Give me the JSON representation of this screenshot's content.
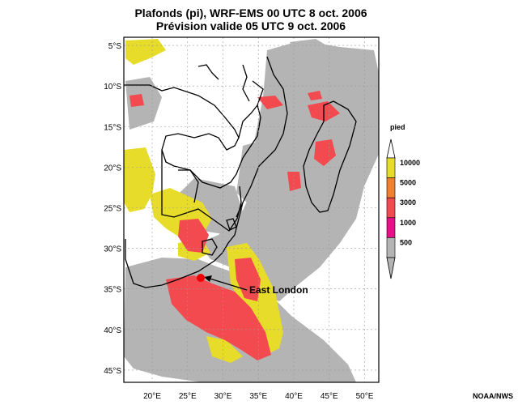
{
  "title": {
    "line1": "Plafonds (pi), WRF-EMS 00 UTC 8 oct. 2006",
    "line2": "Prévision valide 05 UTC 9 oct. 2006"
  },
  "axes": {
    "lat_labels": [
      "5°S",
      "10°S",
      "15°S",
      "20°S",
      "25°S",
      "30°S",
      "35°S",
      "40°S",
      "45°S"
    ],
    "lon_labels": [
      "20°E",
      "25°E",
      "30°E",
      "35°E",
      "40°E",
      "45°E",
      "50°E"
    ],
    "lat_range": [
      -46.5,
      -4
    ],
    "lon_range": [
      16,
      52
    ]
  },
  "legend": {
    "unit": "pied",
    "levels": [
      {
        "label": "10000",
        "color": "#e8dc2a"
      },
      {
        "label": "5000",
        "color": "#f08030"
      },
      {
        "label": "3000",
        "color": "#f24a4e"
      },
      {
        "label": "1000",
        "color": "#e8108a"
      },
      {
        "label": "500",
        "color": "#b4b4b4"
      }
    ]
  },
  "annotation": {
    "label": "East London",
    "lat": -33,
    "lon": 27.5,
    "marker_color": "#ee0000"
  },
  "colors": {
    "low_cloud": "#b4b4b4",
    "mid_cloud": "#f24a4e",
    "high_cloud": "#e8dc2a"
  },
  "credit": "NOAA/NWS"
}
